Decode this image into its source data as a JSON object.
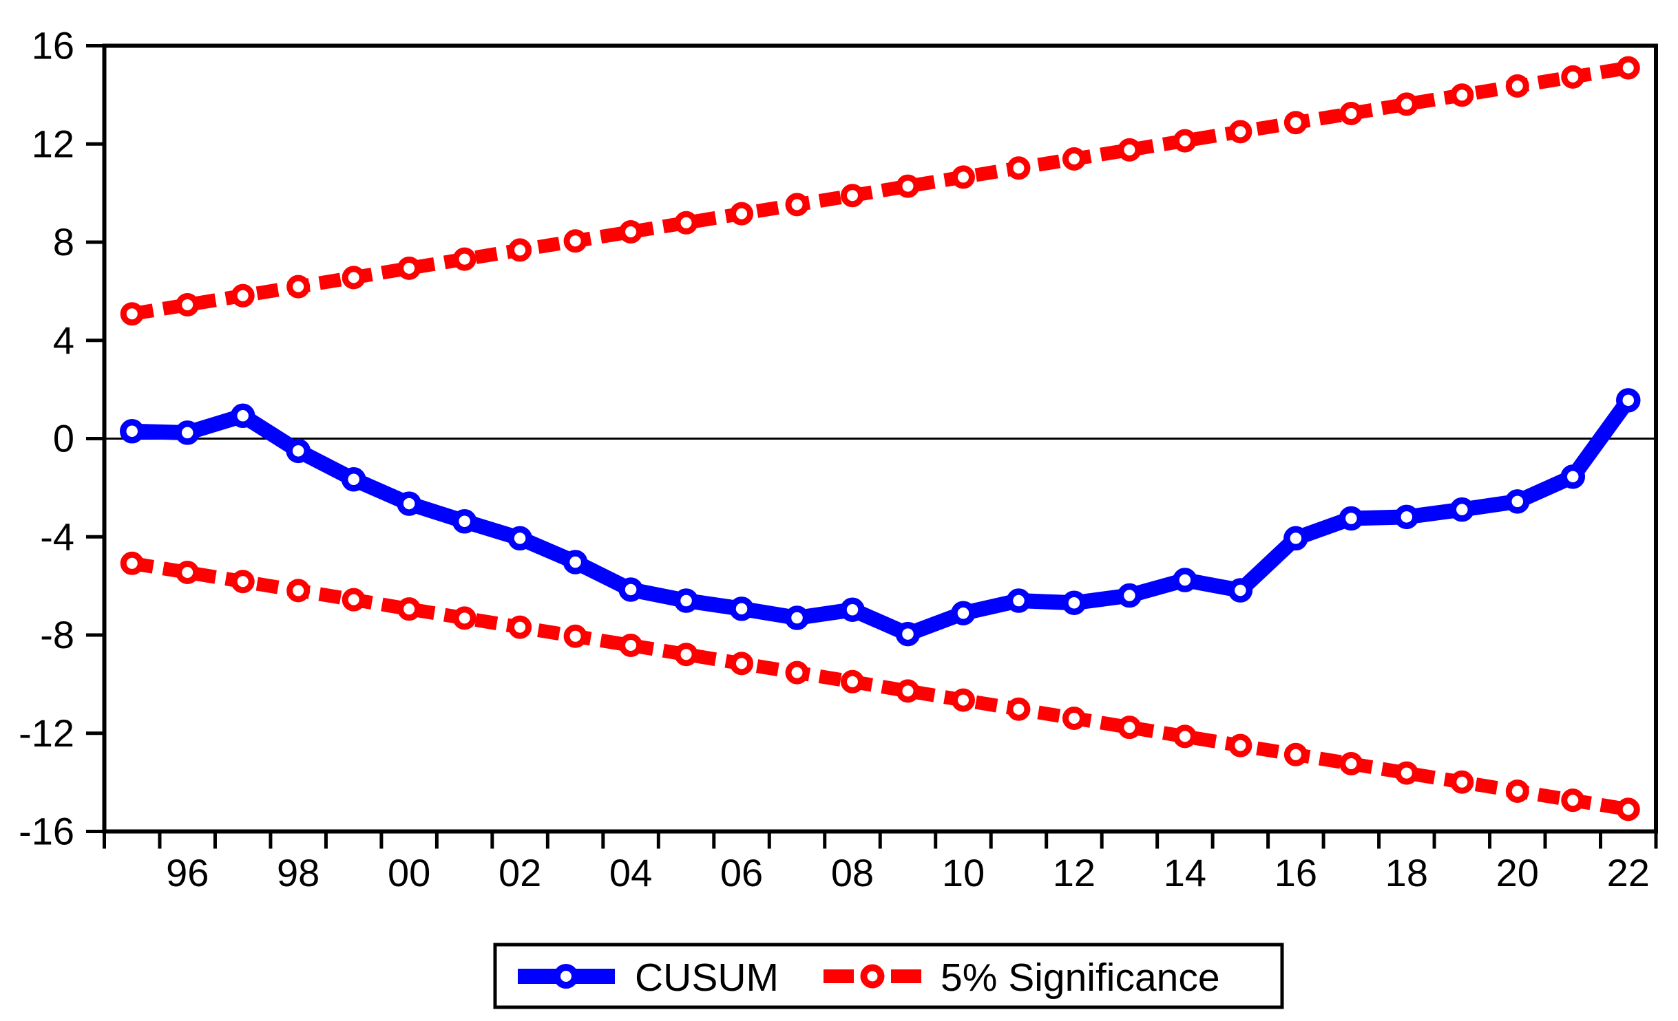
{
  "chart_data": {
    "type": "line",
    "title": "",
    "xlabel": "",
    "ylabel": "",
    "x_years": [
      1995,
      1996,
      1997,
      1998,
      1999,
      2000,
      2001,
      2002,
      2003,
      2004,
      2005,
      2006,
      2007,
      2008,
      2009,
      2010,
      2011,
      2012,
      2013,
      2014,
      2015,
      2016,
      2017,
      2018,
      2019,
      2020,
      2021,
      2022
    ],
    "x_tick_years": [
      1996,
      1998,
      2000,
      2002,
      2004,
      2006,
      2008,
      2010,
      2012,
      2014,
      2016,
      2018,
      2020,
      2022
    ],
    "x_tick_labels": [
      "96",
      "98",
      "00",
      "02",
      "04",
      "06",
      "08",
      "10",
      "12",
      "14",
      "16",
      "18",
      "20",
      "22"
    ],
    "y_ticks": [
      16,
      12,
      8,
      4,
      0,
      -4,
      -8,
      -12,
      -16
    ],
    "y_tick_labels": [
      "16",
      "12",
      "8",
      "4",
      "0",
      "-4",
      "-8",
      "-12",
      "-16"
    ],
    "ylim": [
      -16,
      16
    ],
    "grid": false,
    "zero_line": true,
    "legend_position": "bottom-center",
    "series": [
      {
        "name": "CUSUM",
        "style": "solid",
        "color": "#0000ff",
        "marker": "open-circle",
        "values": [
          0.3,
          0.24,
          0.93,
          -0.5,
          -1.66,
          -2.65,
          -3.37,
          -4.06,
          -5.03,
          -6.15,
          -6.6,
          -6.93,
          -7.3,
          -6.97,
          -7.96,
          -7.11,
          -6.6,
          -6.69,
          -6.39,
          -5.76,
          -6.18,
          -4.06,
          -3.25,
          -3.19,
          -2.89,
          -2.56,
          -1.55,
          1.56
        ]
      },
      {
        "name": "5% Significance (upper bound)",
        "style": "dashed",
        "color": "#ff0000",
        "marker": "open-circle",
        "values": [
          5.08,
          5.45,
          5.82,
          6.19,
          6.56,
          6.94,
          7.31,
          7.68,
          8.05,
          8.42,
          8.79,
          9.16,
          9.53,
          9.9,
          10.28,
          10.65,
          11.02,
          11.39,
          11.76,
          12.13,
          12.5,
          12.87,
          13.24,
          13.62,
          13.99,
          14.36,
          14.73,
          15.1
        ]
      },
      {
        "name": "5% Significance (lower bound)",
        "style": "dashed",
        "color": "#ff0000",
        "marker": "open-circle",
        "values": [
          -5.08,
          -5.45,
          -5.82,
          -6.19,
          -6.56,
          -6.94,
          -7.31,
          -7.68,
          -8.05,
          -8.42,
          -8.79,
          -9.16,
          -9.53,
          -9.9,
          -10.28,
          -10.65,
          -11.02,
          -11.39,
          -11.76,
          -12.13,
          -12.5,
          -12.87,
          -13.24,
          -13.62,
          -13.99,
          -14.36,
          -14.73,
          -15.1
        ]
      }
    ]
  },
  "legend": {
    "cusum_label": "CUSUM",
    "significance_label": "5% Significance"
  },
  "colors": {
    "cusum": "#0000ff",
    "significance": "#ff0000",
    "axis": "#000000",
    "background": "#ffffff"
  }
}
